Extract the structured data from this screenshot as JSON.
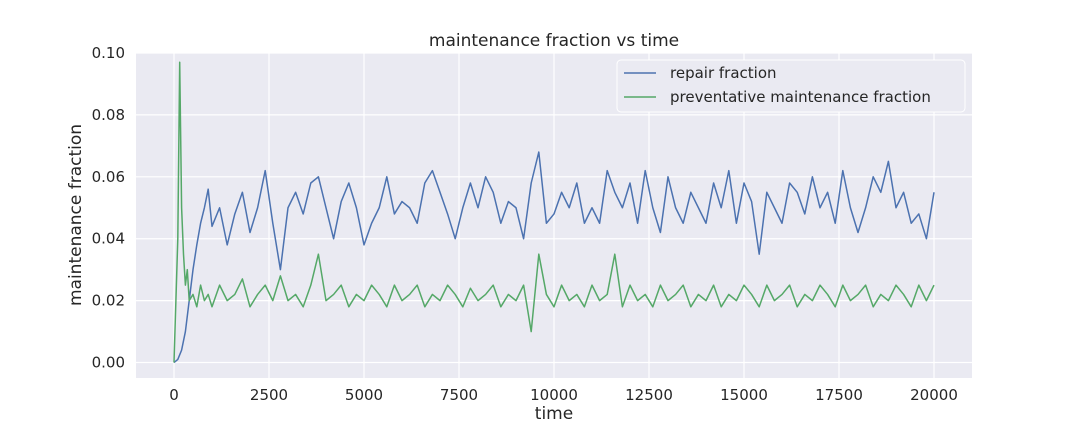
{
  "chart_data": {
    "type": "line",
    "title": "maintenance fraction vs time",
    "xlabel": "time",
    "ylabel": "maintenance fraction",
    "xlim": [
      -1000,
      21000
    ],
    "ylim": [
      -0.005,
      0.1
    ],
    "xticks": [
      0,
      2500,
      5000,
      7500,
      10000,
      12500,
      15000,
      17500,
      20000
    ],
    "yticks": [
      "0.00",
      "0.02",
      "0.04",
      "0.06",
      "0.08",
      "0.10"
    ],
    "ytick_values": [
      0,
      0.02,
      0.04,
      0.06,
      0.08,
      0.1
    ],
    "grid": true,
    "legend_position": "top-right",
    "series": [
      {
        "name": "repair fraction",
        "color": "#4c72b0",
        "x": [
          0,
          100,
          200,
          300,
          400,
          500,
          600,
          700,
          800,
          900,
          1000,
          1200,
          1400,
          1600,
          1800,
          2000,
          2200,
          2400,
          2600,
          2800,
          3000,
          3200,
          3400,
          3600,
          3800,
          4000,
          4200,
          4400,
          4600,
          4800,
          5000,
          5200,
          5400,
          5600,
          5800,
          6000,
          6200,
          6400,
          6600,
          6800,
          7000,
          7200,
          7400,
          7600,
          7800,
          8000,
          8200,
          8400,
          8600,
          8800,
          9000,
          9200,
          9400,
          9600,
          9800,
          10000,
          10200,
          10400,
          10600,
          10800,
          11000,
          11200,
          11400,
          11600,
          11800,
          12000,
          12200,
          12400,
          12600,
          12800,
          13000,
          13200,
          13400,
          13600,
          13800,
          14000,
          14200,
          14400,
          14600,
          14800,
          15000,
          15200,
          15400,
          15600,
          15800,
          16000,
          16200,
          16400,
          16600,
          16800,
          17000,
          17200,
          17400,
          17600,
          17800,
          18000,
          18200,
          18400,
          18600,
          18800,
          19000,
          19200,
          19400,
          19600,
          19800,
          20000
        ],
        "values": [
          0.0,
          0.001,
          0.004,
          0.01,
          0.02,
          0.03,
          0.038,
          0.045,
          0.05,
          0.056,
          0.044,
          0.05,
          0.038,
          0.048,
          0.055,
          0.042,
          0.05,
          0.062,
          0.045,
          0.03,
          0.05,
          0.055,
          0.048,
          0.058,
          0.06,
          0.05,
          0.04,
          0.052,
          0.058,
          0.05,
          0.038,
          0.045,
          0.05,
          0.06,
          0.048,
          0.052,
          0.05,
          0.045,
          0.058,
          0.062,
          0.055,
          0.048,
          0.04,
          0.05,
          0.058,
          0.05,
          0.06,
          0.055,
          0.045,
          0.052,
          0.05,
          0.04,
          0.058,
          0.068,
          0.045,
          0.048,
          0.055,
          0.05,
          0.058,
          0.045,
          0.05,
          0.045,
          0.062,
          0.055,
          0.05,
          0.058,
          0.045,
          0.062,
          0.05,
          0.042,
          0.06,
          0.05,
          0.045,
          0.055,
          0.05,
          0.045,
          0.058,
          0.05,
          0.062,
          0.045,
          0.058,
          0.052,
          0.035,
          0.055,
          0.05,
          0.045,
          0.058,
          0.055,
          0.048,
          0.06,
          0.05,
          0.055,
          0.045,
          0.062,
          0.05,
          0.042,
          0.05,
          0.06,
          0.055,
          0.065,
          0.05,
          0.055,
          0.045,
          0.048,
          0.04,
          0.055
        ]
      },
      {
        "name": "preventative maintenance fraction",
        "color": "#55a868",
        "x": [
          0,
          50,
          100,
          150,
          200,
          250,
          300,
          350,
          400,
          500,
          600,
          700,
          800,
          900,
          1000,
          1200,
          1400,
          1600,
          1800,
          2000,
          2200,
          2400,
          2600,
          2800,
          3000,
          3200,
          3400,
          3600,
          3800,
          4000,
          4200,
          4400,
          4600,
          4800,
          5000,
          5200,
          5400,
          5600,
          5800,
          6000,
          6200,
          6400,
          6600,
          6800,
          7000,
          7200,
          7400,
          7600,
          7800,
          8000,
          8200,
          8400,
          8600,
          8800,
          9000,
          9200,
          9400,
          9600,
          9800,
          10000,
          10200,
          10400,
          10600,
          10800,
          11000,
          11200,
          11400,
          11600,
          11800,
          12000,
          12200,
          12400,
          12600,
          12800,
          13000,
          13200,
          13400,
          13600,
          13800,
          14000,
          14200,
          14400,
          14600,
          14800,
          15000,
          15200,
          15400,
          15600,
          15800,
          16000,
          16200,
          16400,
          16600,
          16800,
          17000,
          17200,
          17400,
          17600,
          17800,
          18000,
          18200,
          18400,
          18600,
          18800,
          19000,
          19200,
          19400,
          19600,
          19800,
          20000
        ],
        "values": [
          0.0,
          0.02,
          0.04,
          0.097,
          0.05,
          0.035,
          0.025,
          0.03,
          0.02,
          0.022,
          0.018,
          0.025,
          0.02,
          0.022,
          0.018,
          0.025,
          0.02,
          0.022,
          0.027,
          0.018,
          0.022,
          0.025,
          0.02,
          0.028,
          0.02,
          0.022,
          0.018,
          0.025,
          0.035,
          0.02,
          0.022,
          0.025,
          0.018,
          0.022,
          0.02,
          0.025,
          0.022,
          0.018,
          0.025,
          0.02,
          0.022,
          0.025,
          0.018,
          0.022,
          0.02,
          0.025,
          0.022,
          0.018,
          0.024,
          0.02,
          0.022,
          0.025,
          0.018,
          0.022,
          0.02,
          0.025,
          0.01,
          0.035,
          0.022,
          0.018,
          0.025,
          0.02,
          0.022,
          0.018,
          0.025,
          0.02,
          0.022,
          0.035,
          0.018,
          0.025,
          0.02,
          0.022,
          0.018,
          0.025,
          0.02,
          0.022,
          0.025,
          0.018,
          0.022,
          0.02,
          0.025,
          0.018,
          0.022,
          0.02,
          0.025,
          0.022,
          0.018,
          0.025,
          0.02,
          0.022,
          0.025,
          0.018,
          0.022,
          0.02,
          0.025,
          0.022,
          0.018,
          0.025,
          0.02,
          0.022,
          0.025,
          0.018,
          0.022,
          0.02,
          0.025,
          0.022,
          0.018,
          0.025,
          0.02,
          0.025
        ]
      }
    ]
  }
}
